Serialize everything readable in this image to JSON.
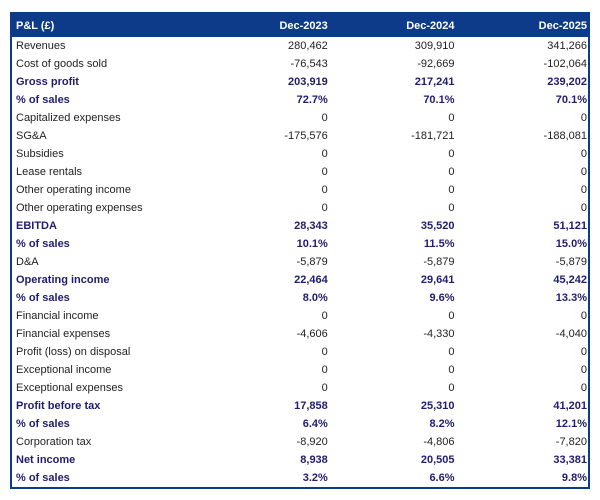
{
  "colors": {
    "header_bg": "#0e3a8a",
    "border": "#0e3a8a",
    "bold_text": "#201d70",
    "body_text": "#1f1f1f",
    "header_text": "#ffffff"
  },
  "chart_data": {
    "type": "table",
    "title": "P&L (£)",
    "columns": [
      "Dec-2023",
      "Dec-2024",
      "Dec-2025"
    ],
    "rows": [
      {
        "label": "Revenues",
        "values": [
          "280,462",
          "309,910",
          "341,266"
        ],
        "bold": false
      },
      {
        "label": "Cost of goods sold",
        "values": [
          "-76,543",
          "-92,669",
          "-102,064"
        ],
        "bold": false
      },
      {
        "label": "Gross profit",
        "values": [
          "203,919",
          "217,241",
          "239,202"
        ],
        "bold": true
      },
      {
        "label": "% of sales",
        "values": [
          "72.7%",
          "70.1%",
          "70.1%"
        ],
        "bold": true
      },
      {
        "label": "Capitalized expenses",
        "values": [
          "0",
          "0",
          "0"
        ],
        "bold": false
      },
      {
        "label": "SG&A",
        "values": [
          "-175,576",
          "-181,721",
          "-188,081"
        ],
        "bold": false
      },
      {
        "label": "Subsidies",
        "values": [
          "0",
          "0",
          "0"
        ],
        "bold": false
      },
      {
        "label": "Lease rentals",
        "values": [
          "0",
          "0",
          "0"
        ],
        "bold": false
      },
      {
        "label": "Other operating income",
        "values": [
          "0",
          "0",
          "0"
        ],
        "bold": false
      },
      {
        "label": "Other operating expenses",
        "values": [
          "0",
          "0",
          "0"
        ],
        "bold": false
      },
      {
        "label": "EBITDA",
        "values": [
          "28,343",
          "35,520",
          "51,121"
        ],
        "bold": true
      },
      {
        "label": "% of sales",
        "values": [
          "10.1%",
          "11.5%",
          "15.0%"
        ],
        "bold": true
      },
      {
        "label": "D&A",
        "values": [
          "-5,879",
          "-5,879",
          "-5,879"
        ],
        "bold": false
      },
      {
        "label": "Operating income",
        "values": [
          "22,464",
          "29,641",
          "45,242"
        ],
        "bold": true
      },
      {
        "label": "% of sales",
        "values": [
          "8.0%",
          "9.6%",
          "13.3%"
        ],
        "bold": true
      },
      {
        "label": "Financial income",
        "values": [
          "0",
          "0",
          "0"
        ],
        "bold": false
      },
      {
        "label": "Financial expenses",
        "values": [
          "-4,606",
          "-4,330",
          "-4,040"
        ],
        "bold": false
      },
      {
        "label": "Profit (loss) on disposal",
        "values": [
          "0",
          "0",
          "0"
        ],
        "bold": false
      },
      {
        "label": "Exceptional income",
        "values": [
          "0",
          "0",
          "0"
        ],
        "bold": false
      },
      {
        "label": "Exceptional expenses",
        "values": [
          "0",
          "0",
          "0"
        ],
        "bold": false
      },
      {
        "label": "Profit before tax",
        "values": [
          "17,858",
          "25,310",
          "41,201"
        ],
        "bold": true
      },
      {
        "label": "% of sales",
        "values": [
          "6.4%",
          "8.2%",
          "12.1%"
        ],
        "bold": true
      },
      {
        "label": "Corporation tax",
        "values": [
          "-8,920",
          "-4,806",
          "-7,820"
        ],
        "bold": false
      },
      {
        "label": "Net income",
        "values": [
          "8,938",
          "20,505",
          "33,381"
        ],
        "bold": true
      },
      {
        "label": "% of sales",
        "values": [
          "3.2%",
          "6.6%",
          "9.8%"
        ],
        "bold": true
      }
    ]
  }
}
